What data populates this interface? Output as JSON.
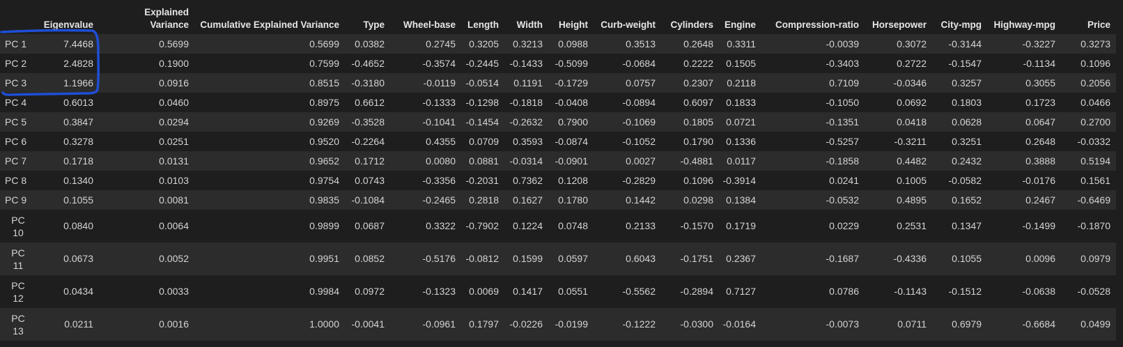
{
  "table": {
    "columns": [
      {
        "key": "idx",
        "label": ""
      },
      {
        "key": "eigenvalue",
        "label": "Eigenvalue"
      },
      {
        "key": "explained",
        "label": "Explained Variance"
      },
      {
        "key": "cumulative",
        "label": "Cumulative Explained Variance"
      },
      {
        "key": "type",
        "label": "Type"
      },
      {
        "key": "wheelbase",
        "label": "Wheel-base"
      },
      {
        "key": "length",
        "label": "Length"
      },
      {
        "key": "width",
        "label": "Width"
      },
      {
        "key": "height",
        "label": "Height"
      },
      {
        "key": "curbweight",
        "label": "Curb-weight"
      },
      {
        "key": "cylinders",
        "label": "Cylinders"
      },
      {
        "key": "engine",
        "label": "Engine"
      },
      {
        "key": "compression",
        "label": "Compression-ratio"
      },
      {
        "key": "horsepower",
        "label": "Horsepower"
      },
      {
        "key": "citympg",
        "label": "City-mpg"
      },
      {
        "key": "highwaympg",
        "label": "Highway-mpg"
      },
      {
        "key": "price",
        "label": "Price"
      }
    ],
    "rows": [
      [
        "PC 1",
        "7.4468",
        "0.5699",
        "0.5699",
        "0.0382",
        "0.2745",
        "0.3205",
        "0.3213",
        "0.0988",
        "0.3513",
        "0.2648",
        "0.3311",
        "-0.0039",
        "0.3072",
        "-0.3144",
        "-0.3227",
        "0.3273"
      ],
      [
        "PC 2",
        "2.4828",
        "0.1900",
        "0.7599",
        "-0.4652",
        "-0.3574",
        "-0.2445",
        "-0.1433",
        "-0.5099",
        "-0.0684",
        "0.2222",
        "0.1505",
        "-0.3403",
        "0.2722",
        "-0.1547",
        "-0.1134",
        "0.1096"
      ],
      [
        "PC 3",
        "1.1966",
        "0.0916",
        "0.8515",
        "-0.3180",
        "-0.0119",
        "-0.0514",
        "0.1191",
        "-0.1729",
        "0.0757",
        "0.2307",
        "0.2118",
        "0.7109",
        "-0.0346",
        "0.3257",
        "0.3055",
        "0.2056"
      ],
      [
        "PC 4",
        "0.6013",
        "0.0460",
        "0.8975",
        "0.6612",
        "-0.1333",
        "-0.1298",
        "-0.1818",
        "-0.0408",
        "-0.0894",
        "0.6097",
        "0.1833",
        "-0.1050",
        "0.0692",
        "0.1803",
        "0.1723",
        "0.0466"
      ],
      [
        "PC 5",
        "0.3847",
        "0.0294",
        "0.9269",
        "-0.3528",
        "-0.1041",
        "-0.1454",
        "-0.2632",
        "0.7900",
        "-0.1069",
        "0.1805",
        "0.0721",
        "-0.1351",
        "0.0418",
        "0.0628",
        "0.0647",
        "0.2700"
      ],
      [
        "PC 6",
        "0.3278",
        "0.0251",
        "0.9520",
        "-0.2264",
        "0.4355",
        "0.0709",
        "0.3593",
        "-0.0874",
        "-0.1052",
        "0.1790",
        "0.1336",
        "-0.5257",
        "-0.3211",
        "0.3251",
        "0.2648",
        "-0.0332"
      ],
      [
        "PC 7",
        "0.1718",
        "0.0131",
        "0.9652",
        "0.1712",
        "0.0080",
        "0.0881",
        "-0.0314",
        "-0.0901",
        "0.0027",
        "-0.4881",
        "0.0117",
        "-0.1858",
        "0.4482",
        "0.2432",
        "0.3888",
        "0.5194"
      ],
      [
        "PC 8",
        "0.1340",
        "0.0103",
        "0.9754",
        "0.0743",
        "-0.3356",
        "-0.2031",
        "0.7362",
        "0.1208",
        "-0.2829",
        "0.1096",
        "-0.3914",
        "0.0241",
        "0.1005",
        "-0.0582",
        "-0.0176",
        "0.1561"
      ],
      [
        "PC 9",
        "0.1055",
        "0.0081",
        "0.9835",
        "-0.1084",
        "-0.2465",
        "0.2818",
        "0.1627",
        "0.1780",
        "0.1442",
        "0.0298",
        "0.1384",
        "-0.0532",
        "0.4895",
        "0.1652",
        "0.2467",
        "-0.6469"
      ],
      [
        "PC 10",
        "0.0840",
        "0.0064",
        "0.9899",
        "0.0687",
        "0.3322",
        "-0.7902",
        "0.1224",
        "0.0748",
        "0.2133",
        "-0.1570",
        "0.1719",
        "0.0229",
        "0.2531",
        "0.1347",
        "-0.1499",
        "-0.1870"
      ],
      [
        "PC 11",
        "0.0673",
        "0.0052",
        "0.9951",
        "0.0852",
        "-0.5176",
        "-0.0812",
        "0.1599",
        "0.0597",
        "0.6043",
        "-0.1751",
        "0.2367",
        "-0.1687",
        "-0.4336",
        "0.1055",
        "0.0096",
        "0.0979"
      ],
      [
        "PC 12",
        "0.0434",
        "0.0033",
        "0.9984",
        "0.0972",
        "-0.1323",
        "0.0069",
        "0.1417",
        "0.0551",
        "-0.5562",
        "-0.2894",
        "0.7127",
        "0.0786",
        "-0.1143",
        "-0.1512",
        "-0.0638",
        "-0.0528"
      ],
      [
        "PC 13",
        "0.0211",
        "0.0016",
        "1.0000",
        "-0.0041",
        "-0.0961",
        "0.1797",
        "-0.0226",
        "-0.0199",
        "-0.1222",
        "-0.0300",
        "-0.0164",
        "-0.0073",
        "0.0711",
        "0.6979",
        "-0.6684",
        "0.0499"
      ]
    ]
  },
  "annotation": {
    "color": "#1e4fd8"
  }
}
